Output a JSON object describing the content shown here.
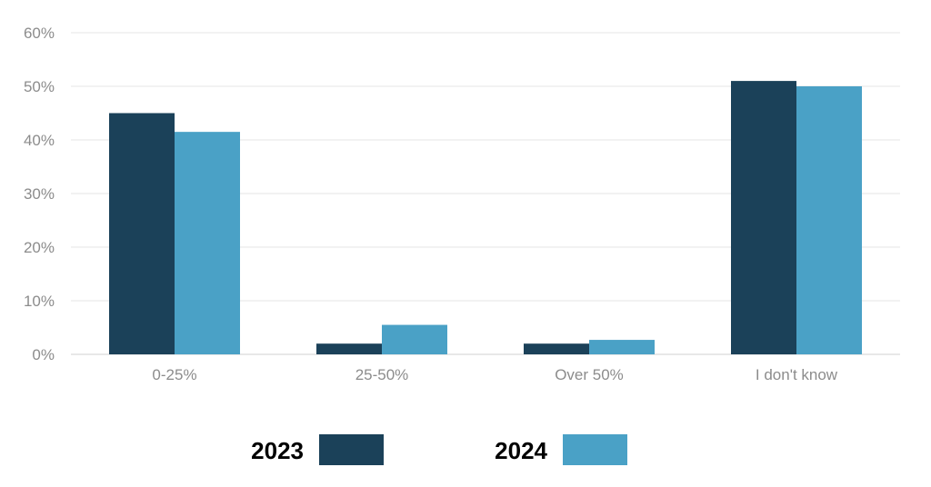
{
  "chart_data": {
    "type": "bar",
    "title": "",
    "xlabel": "",
    "ylabel": "",
    "categories": [
      "0-25%",
      "25-50%",
      "Over 50%",
      "I don't know"
    ],
    "series": [
      {
        "name": "2023",
        "values": [
          45,
          2,
          2,
          51
        ],
        "color": "#1b4159"
      },
      {
        "name": "2024",
        "values": [
          41.5,
          5.5,
          2.7,
          50
        ],
        "color": "#4aa1c6"
      }
    ],
    "ylim": [
      0,
      60
    ],
    "yticks": [
      0,
      10,
      20,
      30,
      40,
      50,
      60
    ],
    "ytick_labels": [
      "0%",
      "10%",
      "20%",
      "30%",
      "40%",
      "50%",
      "60%"
    ],
    "grid": true,
    "legend_position": "bottom"
  }
}
